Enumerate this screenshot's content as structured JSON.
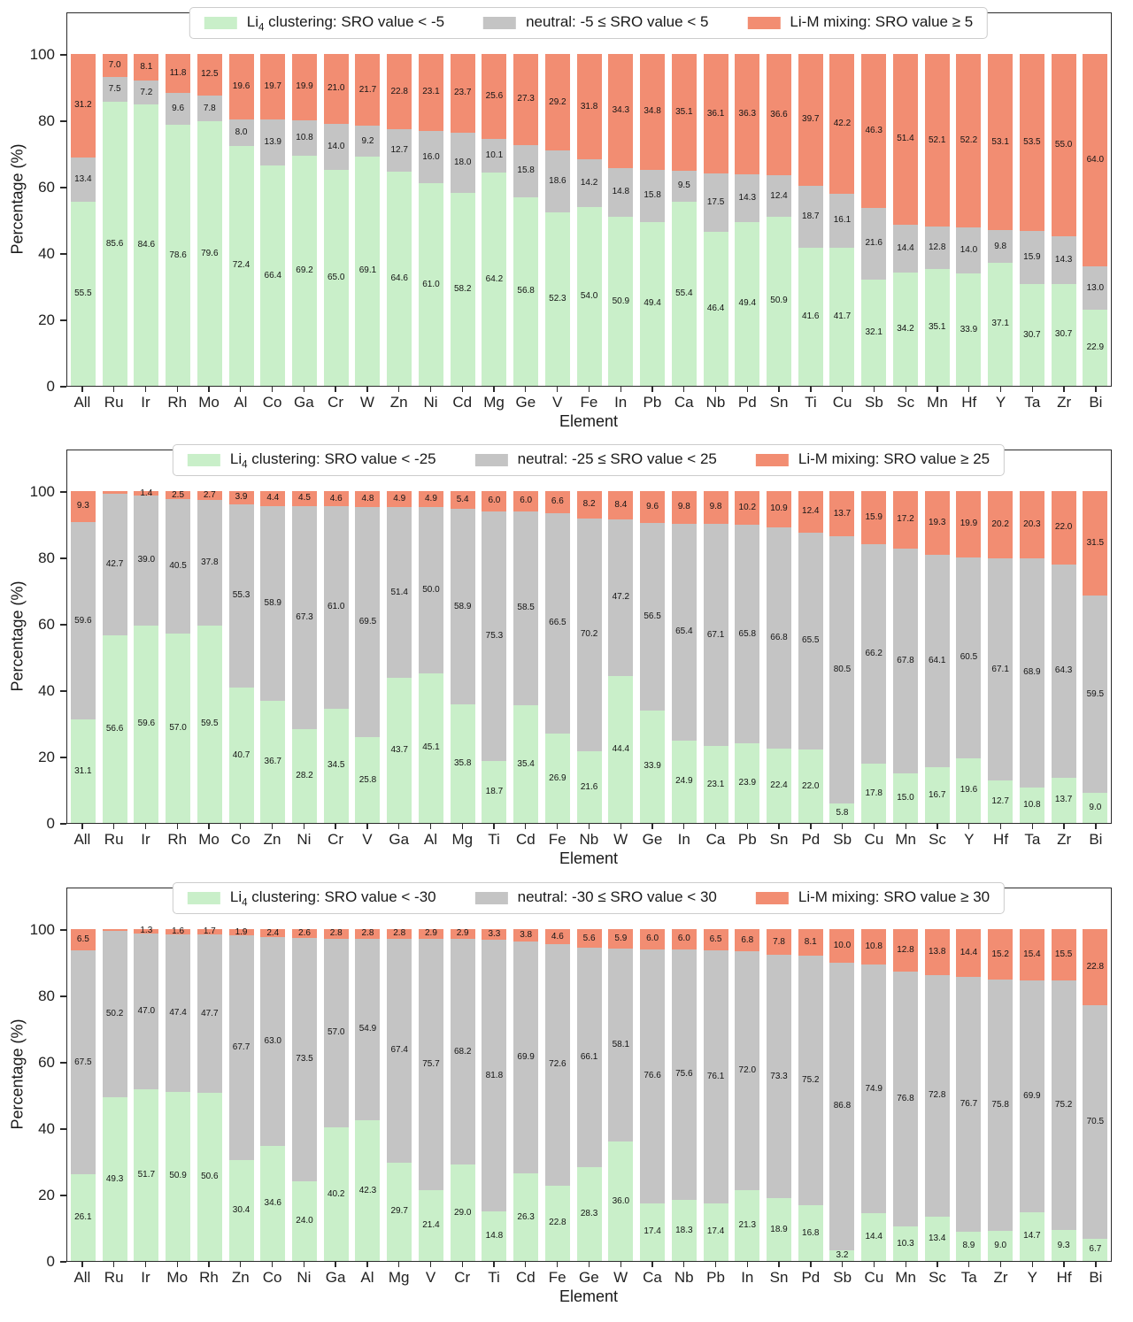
{
  "page_background": "#ffffff",
  "colors": {
    "clustering": "#c9efc9",
    "neutral": "#c4c4c4",
    "mixing": "#f28d72",
    "axis": "#2b2b2b"
  },
  "chart_data": [
    {
      "type": "bar",
      "stacked": true,
      "xlabel": "Element",
      "ylabel": "Percentage (%)",
      "yticks": [
        0,
        20,
        40,
        60,
        80,
        100
      ],
      "ylim": [
        0,
        113
      ],
      "grid": false,
      "legend_position": "upper center",
      "label_min_shown": 1.0,
      "legend": [
        {
          "pre": "Li",
          "sub": "4",
          "text": " clustering: SRO value < -5"
        },
        {
          "pre": "",
          "sub": "",
          "text": "neutral: -5 ≤ SRO value < 5"
        },
        {
          "pre": "",
          "sub": "",
          "text": "Li-M mixing: SRO value ≥ 5"
        }
      ],
      "categories": [
        "All",
        "Ru",
        "Ir",
        "Rh",
        "Mo",
        "Al",
        "Co",
        "Ga",
        "Cr",
        "W",
        "Zn",
        "Ni",
        "Cd",
        "Mg",
        "Ge",
        "V",
        "Fe",
        "In",
        "Pb",
        "Ca",
        "Nb",
        "Pd",
        "Sn",
        "Ti",
        "Cu",
        "Sb",
        "Sc",
        "Mn",
        "Hf",
        "Y",
        "Ta",
        "Zr",
        "Bi"
      ],
      "series": [
        {
          "name": "Li4 clustering: SRO value < -5",
          "color_key": "clustering",
          "values": [
            55.5,
            85.6,
            84.6,
            78.6,
            79.6,
            72.4,
            66.4,
            69.2,
            65.0,
            69.1,
            64.6,
            61.0,
            58.2,
            64.2,
            56.8,
            52.3,
            54.0,
            50.9,
            49.4,
            55.4,
            46.4,
            49.4,
            50.9,
            41.6,
            41.7,
            32.1,
            34.2,
            35.1,
            33.9,
            37.1,
            30.7,
            30.7,
            22.9
          ]
        },
        {
          "name": "neutral: -5 ≤ SRO value < 5",
          "color_key": "neutral",
          "values": [
            13.4,
            7.5,
            7.2,
            9.6,
            7.8,
            8.0,
            13.9,
            10.8,
            14.0,
            9.2,
            12.7,
            16.0,
            18.0,
            10.1,
            15.8,
            18.6,
            14.2,
            14.8,
            15.8,
            9.5,
            17.5,
            14.3,
            12.4,
            18.7,
            16.1,
            21.6,
            14.4,
            12.8,
            14.0,
            9.8,
            15.9,
            14.3,
            13.0
          ]
        },
        {
          "name": "Li-M mixing: SRO value ≥ 5",
          "color_key": "mixing",
          "values": [
            31.2,
            7.0,
            8.1,
            11.8,
            12.5,
            19.6,
            19.7,
            19.9,
            21.0,
            21.7,
            22.8,
            23.1,
            23.7,
            25.6,
            27.3,
            29.2,
            31.8,
            34.3,
            34.8,
            35.1,
            36.1,
            36.3,
            36.6,
            39.7,
            42.2,
            46.3,
            51.4,
            52.1,
            52.2,
            53.1,
            53.5,
            55.0,
            64.0
          ]
        }
      ]
    },
    {
      "type": "bar",
      "stacked": true,
      "xlabel": "Element",
      "ylabel": "Percentage (%)",
      "yticks": [
        0,
        20,
        40,
        60,
        80,
        100
      ],
      "ylim": [
        0,
        113
      ],
      "grid": false,
      "legend_position": "upper center",
      "label_min_shown": 1.0,
      "legend": [
        {
          "pre": "Li",
          "sub": "4",
          "text": " clustering: SRO value < -25"
        },
        {
          "pre": "",
          "sub": "",
          "text": "neutral: -25 ≤ SRO value < 25"
        },
        {
          "pre": "",
          "sub": "",
          "text": "Li-M mixing: SRO value ≥ 25"
        }
      ],
      "categories": [
        "All",
        "Ru",
        "Ir",
        "Rh",
        "Mo",
        "Co",
        "Zn",
        "Ni",
        "Cr",
        "V",
        "Ga",
        "Al",
        "Mg",
        "Ti",
        "Cd",
        "Fe",
        "Nb",
        "W",
        "Ge",
        "In",
        "Ca",
        "Pb",
        "Sn",
        "Pd",
        "Sb",
        "Cu",
        "Mn",
        "Sc",
        "Y",
        "Hf",
        "Ta",
        "Zr",
        "Bi"
      ],
      "series": [
        {
          "name": "Li4 clustering: SRO value < -25",
          "color_key": "clustering",
          "values": [
            31.1,
            56.6,
            59.6,
            57.0,
            59.5,
            40.7,
            36.7,
            28.2,
            34.5,
            25.8,
            43.7,
            45.1,
            35.8,
            18.7,
            35.4,
            26.9,
            21.6,
            44.4,
            33.9,
            24.9,
            23.1,
            23.9,
            22.4,
            22.0,
            5.8,
            17.8,
            15.0,
            16.7,
            19.6,
            12.7,
            10.8,
            13.7,
            9.0
          ]
        },
        {
          "name": "neutral: -25 ≤ SRO value < 25",
          "color_key": "neutral",
          "values": [
            59.6,
            42.7,
            39.0,
            40.5,
            37.8,
            55.3,
            58.9,
            67.3,
            61.0,
            69.5,
            51.4,
            50.0,
            58.9,
            75.3,
            58.5,
            66.5,
            70.2,
            47.2,
            56.5,
            65.4,
            67.1,
            65.8,
            66.8,
            65.5,
            80.5,
            66.2,
            67.8,
            64.1,
            60.5,
            67.1,
            68.9,
            64.3,
            59.5
          ]
        },
        {
          "name": "Li-M mixing: SRO value ≥ 25",
          "color_key": "mixing",
          "values": [
            9.3,
            0.7,
            1.4,
            2.5,
            2.7,
            3.9,
            4.4,
            4.5,
            4.6,
            4.8,
            4.9,
            4.9,
            5.4,
            6.0,
            6.0,
            6.6,
            8.2,
            8.4,
            9.6,
            9.8,
            9.8,
            10.2,
            10.9,
            12.4,
            13.7,
            15.9,
            17.2,
            19.3,
            19.9,
            20.2,
            20.3,
            22.0,
            31.5
          ]
        }
      ]
    },
    {
      "type": "bar",
      "stacked": true,
      "xlabel": "Element",
      "ylabel": "Percentage (%)",
      "yticks": [
        0,
        20,
        40,
        60,
        80,
        100
      ],
      "ylim": [
        0,
        113
      ],
      "grid": false,
      "legend_position": "upper center",
      "label_min_shown": 1.0,
      "legend": [
        {
          "pre": "Li",
          "sub": "4",
          "text": " clustering: SRO value < -30"
        },
        {
          "pre": "",
          "sub": "",
          "text": "neutral: -30 ≤ SRO value < 30"
        },
        {
          "pre": "",
          "sub": "",
          "text": "Li-M mixing: SRO value ≥ 30"
        }
      ],
      "categories": [
        "All",
        "Ru",
        "Ir",
        "Mo",
        "Rh",
        "Zn",
        "Co",
        "Ni",
        "Ga",
        "Al",
        "Mg",
        "V",
        "Cr",
        "Ti",
        "Cd",
        "Fe",
        "Ge",
        "W",
        "Ca",
        "Nb",
        "Pb",
        "In",
        "Sn",
        "Pd",
        "Sb",
        "Cu",
        "Mn",
        "Sc",
        "Ta",
        "Zr",
        "Y",
        "Hf",
        "Bi"
      ],
      "series": [
        {
          "name": "Li4 clustering: SRO value < -30",
          "color_key": "clustering",
          "values": [
            26.1,
            49.3,
            51.7,
            50.9,
            50.6,
            30.4,
            34.6,
            24.0,
            40.2,
            42.3,
            29.7,
            21.4,
            29.0,
            14.8,
            26.3,
            22.8,
            28.3,
            36.0,
            17.4,
            18.3,
            17.4,
            21.3,
            18.9,
            16.8,
            3.2,
            14.4,
            10.3,
            13.4,
            8.9,
            9.0,
            14.7,
            9.3,
            6.7
          ]
        },
        {
          "name": "neutral: -30 ≤ SRO value < 30",
          "color_key": "neutral",
          "values": [
            67.5,
            50.2,
            47.0,
            47.4,
            47.7,
            67.7,
            63.0,
            73.5,
            57.0,
            54.9,
            67.4,
            75.7,
            68.2,
            81.8,
            69.9,
            72.6,
            66.1,
            58.1,
            76.6,
            75.6,
            76.1,
            72.0,
            73.3,
            75.2,
            86.8,
            74.9,
            76.8,
            72.8,
            76.7,
            75.8,
            69.9,
            75.2,
            70.5
          ]
        },
        {
          "name": "Li-M mixing: SRO value ≥ 30",
          "color_key": "mixing",
          "values": [
            6.5,
            0.5,
            1.3,
            1.6,
            1.7,
            1.9,
            2.4,
            2.6,
            2.8,
            2.8,
            2.8,
            2.9,
            2.9,
            3.3,
            3.8,
            4.6,
            5.6,
            5.9,
            6.0,
            6.0,
            6.5,
            6.8,
            7.8,
            8.1,
            10.0,
            10.8,
            12.8,
            13.8,
            14.4,
            15.2,
            15.4,
            15.5,
            22.8
          ]
        }
      ]
    }
  ]
}
